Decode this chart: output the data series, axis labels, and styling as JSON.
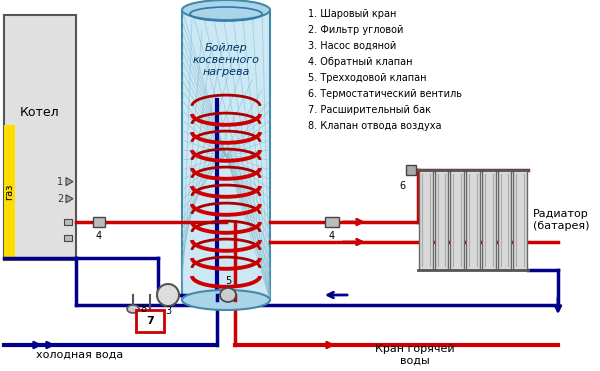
{
  "bg_color": "#ffffff",
  "legend_items": [
    "1. Шаровый кран",
    "2. Фильтр угловой",
    "3. Насос водяной",
    "4. Обратный клапан",
    "5. Трехходовой клапан",
    "6. Термостатический вентиль",
    "7. Расширительный бак",
    "8. Клапан отвода воздуха"
  ],
  "red": "#cc0000",
  "dark_blue": "#00008B",
  "boiler_label": "Бойлер\nкосвенного\nнагрева",
  "kotel_label": "Котел",
  "gaz_label": "газ",
  "radiator_label": "Радиатор\n(батарея)",
  "cold_water_label": "холодная вода",
  "hot_water_label": "Кран горячей\nводы"
}
